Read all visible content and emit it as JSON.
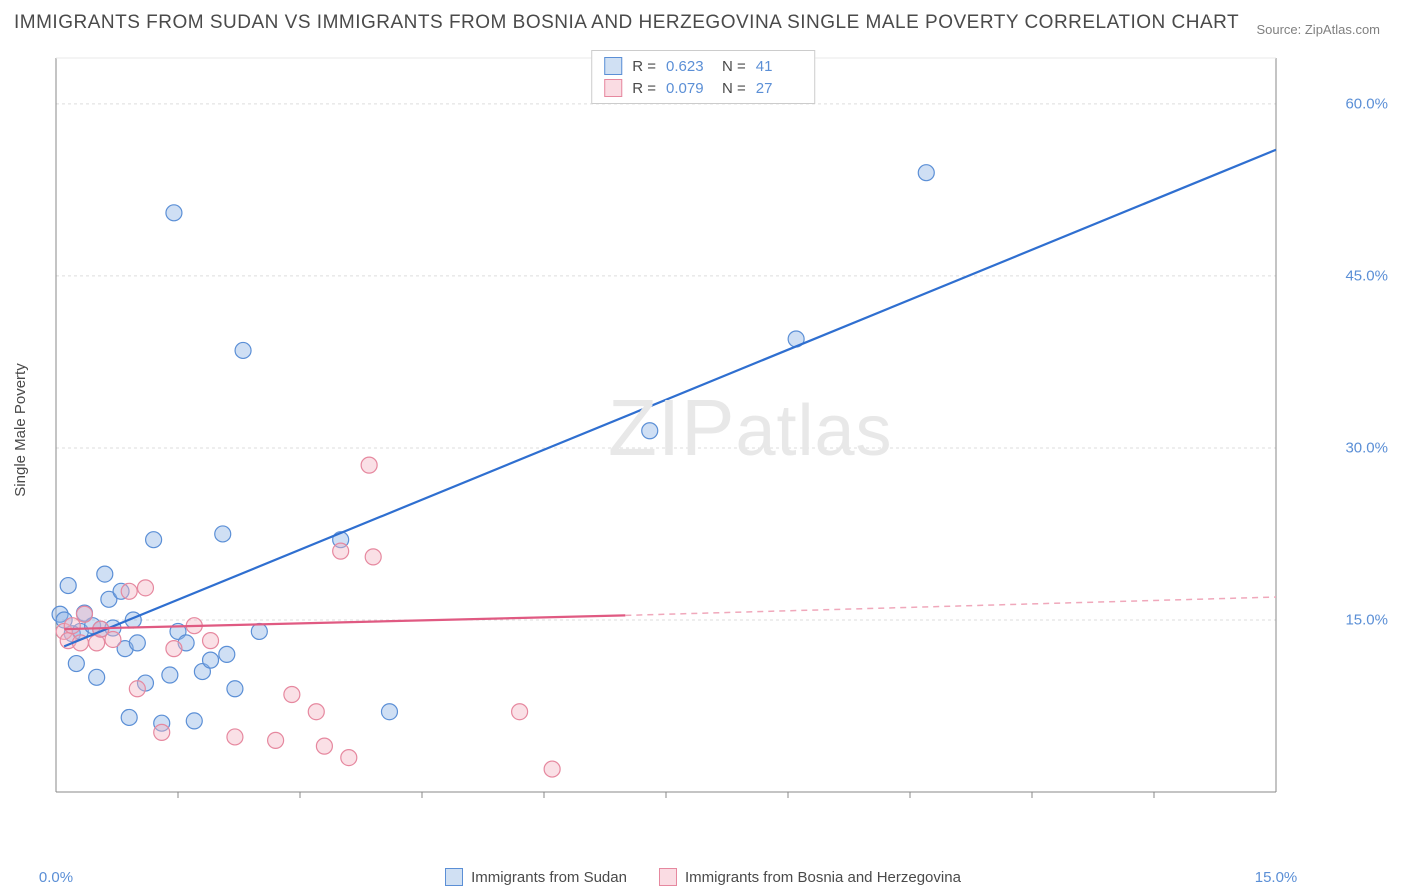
{
  "title": "IMMIGRANTS FROM SUDAN VS IMMIGRANTS FROM BOSNIA AND HERZEGOVINA SINGLE MALE POVERTY CORRELATION CHART",
  "source": "Source: ZipAtlas.com",
  "y_axis_label": "Single Male Poverty",
  "watermark": "ZIPatlas",
  "chart": {
    "type": "scatter",
    "xlim": [
      0,
      15
    ],
    "ylim": [
      0,
      64
    ],
    "y_ticks": [
      15,
      30,
      45,
      60
    ],
    "y_tick_labels": [
      "15.0%",
      "30.0%",
      "45.0%",
      "60.0%"
    ],
    "x_ticks": [
      0,
      15
    ],
    "x_tick_labels": [
      "0.0%",
      "15.0%"
    ],
    "x_minor_ticks": [
      1.5,
      3.0,
      4.5,
      6.0,
      7.5,
      9.0,
      10.5,
      12.0,
      13.5
    ],
    "grid_color": "#dddddd",
    "axis_color": "#888888",
    "background_color": "#ffffff",
    "point_radius": 8,
    "point_opacity": 0.42,
    "series": [
      {
        "name": "Immigrants from Sudan",
        "fill": "#8db3e4",
        "stroke": "#5b8fd6",
        "r_value": "0.623",
        "n_value": "41",
        "trend_line": {
          "x1": 0.1,
          "y1": 12.7,
          "x2": 15.0,
          "y2": 56.0,
          "stroke": "#2f6fd0",
          "width": 2.2
        },
        "points": [
          [
            0.05,
            15.5
          ],
          [
            0.1,
            15.0
          ],
          [
            0.15,
            18.0
          ],
          [
            0.2,
            13.8
          ],
          [
            0.25,
            11.2
          ],
          [
            0.3,
            14.0
          ],
          [
            0.35,
            15.6
          ],
          [
            0.45,
            14.5
          ],
          [
            0.5,
            10.0
          ],
          [
            0.55,
            14.2
          ],
          [
            0.6,
            19.0
          ],
          [
            0.65,
            16.8
          ],
          [
            0.7,
            14.3
          ],
          [
            0.8,
            17.5
          ],
          [
            0.85,
            12.5
          ],
          [
            0.9,
            6.5
          ],
          [
            0.95,
            15.0
          ],
          [
            1.0,
            13.0
          ],
          [
            1.1,
            9.5
          ],
          [
            1.2,
            22.0
          ],
          [
            1.3,
            6.0
          ],
          [
            1.4,
            10.2
          ],
          [
            1.45,
            50.5
          ],
          [
            1.5,
            14.0
          ],
          [
            1.6,
            13.0
          ],
          [
            1.7,
            6.2
          ],
          [
            1.8,
            10.5
          ],
          [
            1.9,
            11.5
          ],
          [
            2.05,
            22.5
          ],
          [
            2.1,
            12.0
          ],
          [
            2.2,
            9.0
          ],
          [
            2.3,
            38.5
          ],
          [
            2.5,
            14.0
          ],
          [
            3.5,
            22.0
          ],
          [
            4.1,
            7.0
          ],
          [
            7.3,
            31.5
          ],
          [
            9.1,
            39.5
          ],
          [
            10.7,
            54.0
          ]
        ]
      },
      {
        "name": "Immigrants from Bosnia and Herzegovina",
        "fill": "#f3b4c3",
        "stroke": "#e6889f",
        "r_value": "0.079",
        "n_value": "27",
        "trend_line_solid": {
          "x1": 0.1,
          "y1": 14.2,
          "x2": 7.0,
          "y2": 15.4,
          "stroke": "#e05a82",
          "width": 2.2
        },
        "trend_line_dashed": {
          "x1": 7.0,
          "y1": 15.4,
          "x2": 15.0,
          "y2": 17.0,
          "stroke": "#f0a8bb",
          "width": 1.5,
          "dash": "6 5"
        },
        "points": [
          [
            0.1,
            14.0
          ],
          [
            0.15,
            13.2
          ],
          [
            0.2,
            14.5
          ],
          [
            0.3,
            13.0
          ],
          [
            0.35,
            15.5
          ],
          [
            0.5,
            13.0
          ],
          [
            0.55,
            14.2
          ],
          [
            0.7,
            13.3
          ],
          [
            0.9,
            17.5
          ],
          [
            1.0,
            9.0
          ],
          [
            1.1,
            17.8
          ],
          [
            1.3,
            5.2
          ],
          [
            1.45,
            12.5
          ],
          [
            1.7,
            14.5
          ],
          [
            1.9,
            13.2
          ],
          [
            2.2,
            4.8
          ],
          [
            2.7,
            4.5
          ],
          [
            2.9,
            8.5
          ],
          [
            3.2,
            7.0
          ],
          [
            3.3,
            4.0
          ],
          [
            3.5,
            21.0
          ],
          [
            3.6,
            3.0
          ],
          [
            3.85,
            28.5
          ],
          [
            3.9,
            20.5
          ],
          [
            5.7,
            7.0
          ],
          [
            6.1,
            2.0
          ]
        ]
      }
    ]
  },
  "legend": {
    "bottom_items": [
      {
        "label": "Immigrants from Sudan",
        "swatch": "blue"
      },
      {
        "label": "Immigrants from Bosnia and Herzegovina",
        "swatch": "pink"
      }
    ]
  },
  "stats_labels": {
    "r": "R =",
    "n": "N ="
  }
}
